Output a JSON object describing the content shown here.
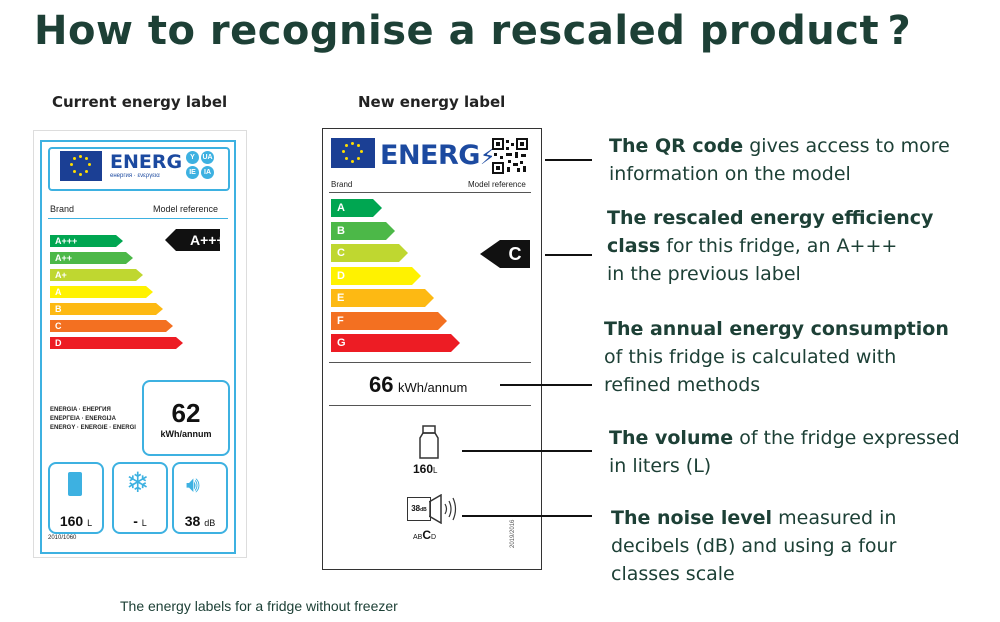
{
  "title": "How to recognise a rescaled product ?",
  "current_label": {
    "heading": "Current energy label",
    "energ": "ENERG",
    "energ_sub": "енергия · ενεργεια",
    "lang_badges": [
      "Y",
      "UA",
      "IE",
      "IA"
    ],
    "brand": "Brand",
    "model_reference": "Model reference",
    "classes": [
      "A+++",
      "A++",
      "A+",
      "A",
      "B",
      "C",
      "D"
    ],
    "class_colors": [
      "#00a651",
      "#4cb848",
      "#bfd730",
      "#fff200",
      "#fdb913",
      "#f37021",
      "#ed1c24"
    ],
    "rating": "A+++",
    "energy_words": [
      "ENERGIA · ЕНЕРГИЯ",
      "ΕΝΕΡΓΕΙΑ · ENERGIJA",
      "ENERGY · ENERGIE · ENERGI"
    ],
    "consumption_value": "62",
    "consumption_unit": "kWh/annum",
    "volume": "160",
    "volume_unit": "L",
    "freezer": "-",
    "freezer_unit": "L",
    "noise": "38",
    "noise_unit": "dB",
    "regulation": "2010/1060"
  },
  "new_label": {
    "heading": "New energy label",
    "energ": "ENERG",
    "brand": "Brand",
    "model_reference": "Model reference",
    "classes": [
      "A",
      "B",
      "C",
      "D",
      "E",
      "F",
      "G"
    ],
    "class_colors": [
      "#00a651",
      "#4cb848",
      "#bfd730",
      "#fff200",
      "#fdb913",
      "#f37021",
      "#ed1c24"
    ],
    "rating": "C",
    "consumption_value": "66",
    "consumption_unit": "kWh/annum",
    "volume": "160",
    "volume_unit": "L",
    "noise": "38",
    "noise_unit": "dB",
    "noise_classes_a": "AB",
    "noise_classes_c": "C",
    "noise_classes_d": "D",
    "regulation": "2019/2016"
  },
  "annotations": [
    {
      "bold": "The QR code",
      "rest_1": " gives access to more",
      "rest_2": "information on the model"
    },
    {
      "bold_1": "The rescaled energy efficiency",
      "bold_2": "class",
      "rest_2": " for this fridge, an A+++",
      "rest_3": "in the previous label"
    },
    {
      "bold": "The annual energy consumption",
      "rest_2": "of this fridge is calculated with",
      "rest_3": "refined methods"
    },
    {
      "bold": "The volume",
      "rest_1": " of the fridge expressed",
      "rest_2": "in liters (L)"
    },
    {
      "bold": "The noise level",
      "rest_1": " measured in",
      "rest_2": "decibels (dB) and using a four",
      "rest_3": "classes scale"
    }
  ],
  "caption": "The energy labels for a fridge without freezer",
  "colors": {
    "title": "#1d4036",
    "label_blue": "#3db1e1",
    "eu_blue": "#1b3f94",
    "energ_blue": "#1c4aa0"
  }
}
